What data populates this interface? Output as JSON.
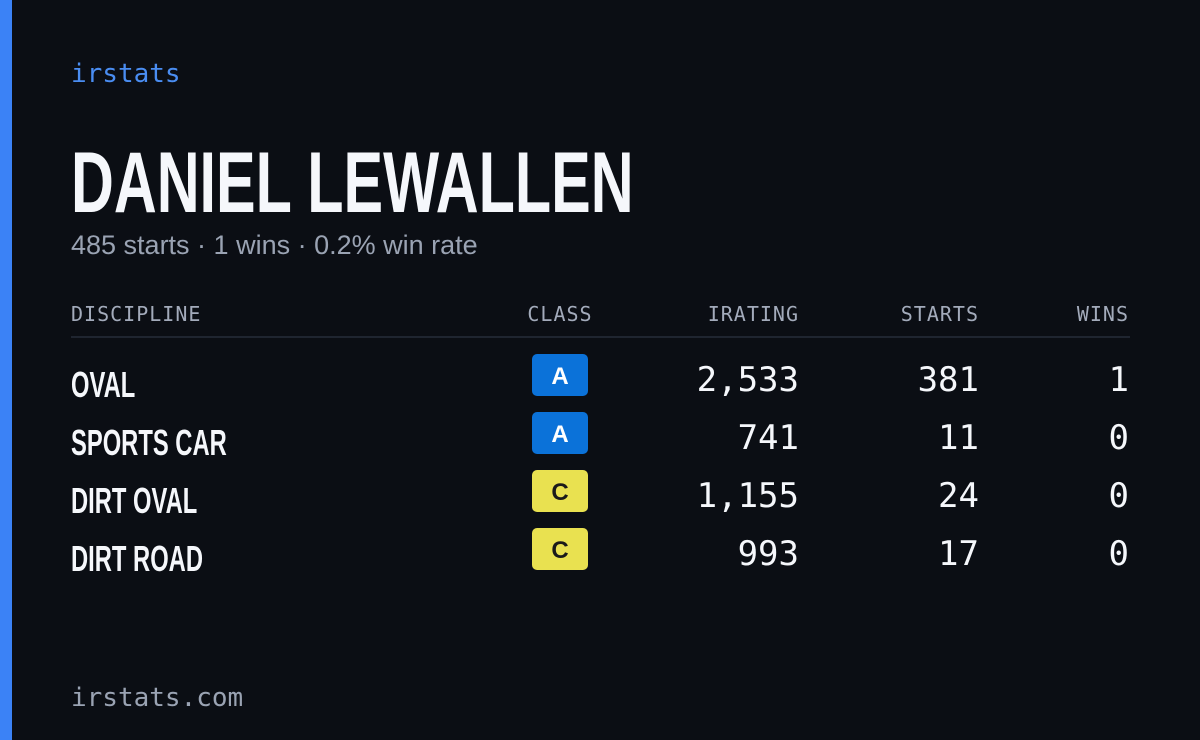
{
  "brand": "irstats",
  "driver": {
    "name": "DANIEL LEWALLEN",
    "summary": "485 starts · 1 wins · 0.2% win rate"
  },
  "table": {
    "headers": [
      "DISCIPLINE",
      "CLASS",
      "IRATING",
      "STARTS",
      "WINS"
    ],
    "rows": [
      {
        "discipline": "OVAL",
        "class": "A",
        "class_color": "#0b72d9",
        "class_text_color": "#ffffff",
        "irating": "2,533",
        "starts": "381",
        "wins": "1"
      },
      {
        "discipline": "SPORTS CAR",
        "class": "A",
        "class_color": "#0b72d9",
        "class_text_color": "#ffffff",
        "irating": "741",
        "starts": "11",
        "wins": "0"
      },
      {
        "discipline": "DIRT OVAL",
        "class": "C",
        "class_color": "#e9e150",
        "class_text_color": "#1a1a1a",
        "irating": "1,155",
        "starts": "24",
        "wins": "0"
      },
      {
        "discipline": "DIRT ROAD",
        "class": "C",
        "class_color": "#e9e150",
        "class_text_color": "#1a1a1a",
        "irating": "993",
        "starts": "17",
        "wins": "0"
      }
    ]
  },
  "footer": "irstats.com"
}
